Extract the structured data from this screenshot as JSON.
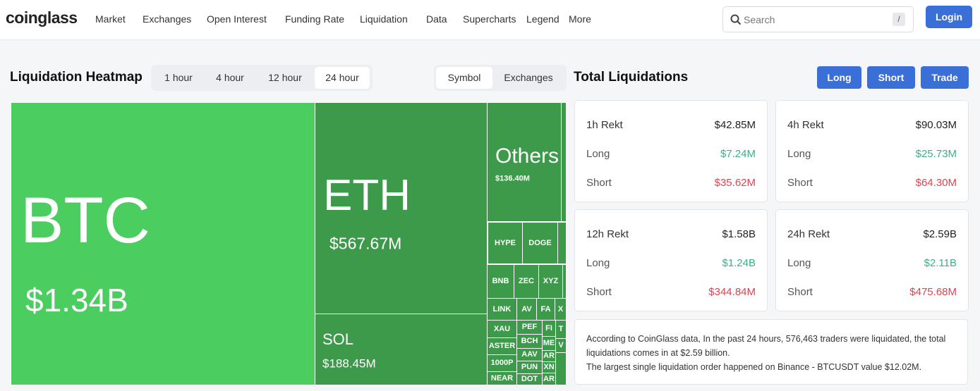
{
  "nav": {
    "logo": "coinglass",
    "items": [
      "Market",
      "Exchanges",
      "Open Interest",
      "Funding Rate",
      "Liquidation",
      "Data",
      "Supercharts",
      "Legend",
      "More"
    ],
    "search_placeholder": "Search",
    "search_key": "/",
    "login": "Login"
  },
  "heatmap": {
    "title": "Liquidation Heatmap",
    "time_tabs": [
      "1 hour",
      "4 hour",
      "12 hour",
      "24 hour"
    ],
    "selected_time_tab": "24 hour",
    "view_tabs": [
      "Symbol",
      "Exchanges"
    ],
    "selected_view_tab": "Symbol",
    "tiles": [
      {
        "label": "BTC",
        "value": "$1.34B"
      },
      {
        "label": "ETH",
        "value": "$567.67M"
      },
      {
        "label": "SOL",
        "value": "$188.45M"
      },
      {
        "label": "Others",
        "value": "$136.40M"
      },
      {
        "label": "HYPE"
      },
      {
        "label": "DOGE"
      },
      {
        "label": "BNB"
      },
      {
        "label": "ZEC"
      },
      {
        "label": "XYZ"
      },
      {
        "label": "LINK"
      },
      {
        "label": "AV"
      },
      {
        "label": "FA"
      },
      {
        "label": "X"
      },
      {
        "label": "XAU"
      },
      {
        "label": "ASTER"
      },
      {
        "label": "1000P"
      },
      {
        "label": "NEAR"
      },
      {
        "label": "PEF"
      },
      {
        "label": "BCH"
      },
      {
        "label": "AAV"
      },
      {
        "label": "PUN"
      },
      {
        "label": "DOT"
      },
      {
        "label": "FI"
      },
      {
        "label": "ME"
      },
      {
        "label": "AR"
      },
      {
        "label": "XN"
      },
      {
        "label": "AR"
      },
      {
        "label": "T"
      },
      {
        "label": "V"
      }
    ]
  },
  "totals": {
    "title": "Total Liquidations",
    "buttons": [
      "Long",
      "Short",
      "Trade"
    ],
    "cards": [
      {
        "period": "1h Rekt",
        "total": "$42.85M",
        "long_label": "Long",
        "long": "$7.24M",
        "short_label": "Short",
        "short": "$35.62M"
      },
      {
        "period": "4h Rekt",
        "total": "$90.03M",
        "long_label": "Long",
        "long": "$25.73M",
        "short_label": "Short",
        "short": "$64.30M"
      },
      {
        "period": "12h Rekt",
        "total": "$1.58B",
        "long_label": "Long",
        "long": "$1.24B",
        "short_label": "Short",
        "short": "$344.84M"
      },
      {
        "period": "24h Rekt",
        "total": "$2.59B",
        "long_label": "Long",
        "long": "$2.11B",
        "short_label": "Short",
        "short": "$475.68M"
      }
    ],
    "note": [
      "According to CoinGlass data, In the past 24 hours, 576,463 traders were liquidated, the total liquidations comes in at $2.59 billion.",
      "The largest single liquidation order happened on Binance - BTCUSDT value $12.02M."
    ]
  }
}
